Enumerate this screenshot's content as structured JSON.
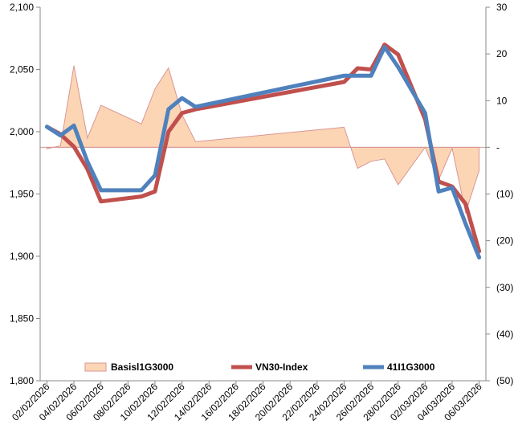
{
  "chart_data": {
    "type": "line",
    "title": "",
    "xlabel": "",
    "ylabel": "",
    "dates": [
      "02/02/2026",
      "03/02/2026",
      "04/02/2026",
      "05/02/2026",
      "06/02/2026",
      "09/02/2026",
      "10/02/2026",
      "11/02/2026",
      "12/02/2026",
      "13/02/2026",
      "24/02/2026",
      "25/02/2026",
      "26/02/2026",
      "27/02/2026",
      "28/02/2026",
      "02/03/2026",
      "03/03/2026",
      "04/03/2026",
      "05/03/2026",
      "06/03/2026"
    ],
    "x_tick_labels": [
      "02/02/2026",
      "04/02/2026",
      "06/02/2026",
      "08/02/2026",
      "10/02/2026",
      "12/02/2026",
      "14/02/2026",
      "16/02/2026",
      "18/02/2026",
      "20/02/2026",
      "22/02/2026",
      "24/02/2026",
      "26/02/2026",
      "28/02/2026",
      "02/03/2026",
      "04/03/2026",
      "06/03/2026"
    ],
    "y_left": {
      "min": 1800,
      "max": 2100,
      "ticks": [
        "1,800",
        "1,850",
        "1,900",
        "1,950",
        "2,000",
        "2,050",
        "2,100"
      ]
    },
    "y_right": {
      "min": -50,
      "max": 30,
      "ticks": [
        "(50)",
        "(40)",
        "(30)",
        "(20)",
        "(10)",
        "-",
        "10",
        "20",
        "30"
      ]
    },
    "series": [
      {
        "name": "Basisl1G3000",
        "kind": "area",
        "axis": "right",
        "color": "#fcd5b5",
        "stroke": "#d99694",
        "values": [
          -0.3,
          0.3,
          17.5,
          2,
          9,
          5,
          12.5,
          17,
          7,
          1.2,
          4.3,
          -4.5,
          -3,
          -2.5,
          -8,
          0,
          -7,
          -0.2,
          -14,
          -5
        ]
      },
      {
        "name": "VN30-Index",
        "kind": "line",
        "axis": "left",
        "color": "#c0504d",
        "values": [
          2004,
          1998,
          1988,
          1970,
          1944,
          1948,
          1952,
          2000,
          2015,
          2018,
          2040,
          2051,
          2050,
          2070,
          2062,
          2010,
          1960,
          1956,
          1942,
          1904
        ]
      },
      {
        "name": "41I1G3000",
        "kind": "line",
        "axis": "left",
        "color": "#4f81bd",
        "values": [
          2004,
          1997,
          2005,
          1976,
          1953,
          1953,
          1965,
          2018,
          2027,
          2020,
          2045,
          2045,
          2045,
          2068,
          2052,
          2015,
          1952,
          1955,
          1926,
          1899
        ]
      }
    ],
    "legend": {
      "position": "bottom-inside",
      "entries": [
        "Basisl1G3000",
        "VN30-Index",
        "41I1G3000"
      ]
    }
  }
}
